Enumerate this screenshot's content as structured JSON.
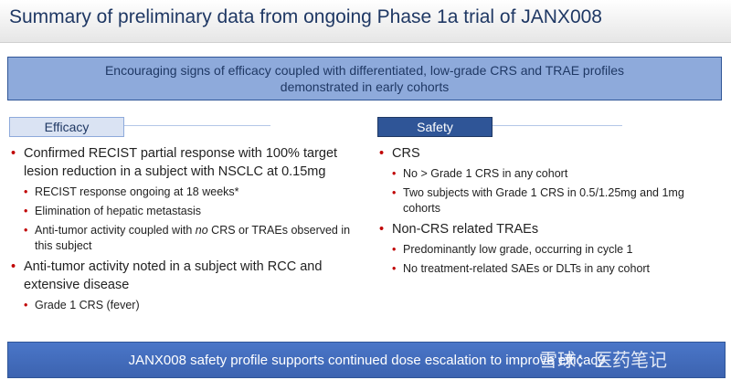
{
  "header": {
    "title": "Summary of preliminary data from ongoing Phase 1a trial of JANX008"
  },
  "banner": "Encouraging signs of efficacy coupled with differentiated, low-grade CRS and TRAE profiles demonstrated in early cohorts",
  "efficacy": {
    "heading": "Efficacy",
    "items": [
      {
        "text": "Confirmed RECIST partial response with 100% target lesion reduction in a subject with NSCLC at 0.15mg",
        "subitems": [
          "RECIST response ongoing at 18 weeks*",
          "Elimination of hepatic metastasis",
          {
            "before": "Anti-tumor activity coupled with",
            "emphasis": "no",
            "after": "CRS or TRAEs observed in this subject"
          }
        ]
      },
      {
        "text": "Anti-tumor activity noted in a subject with RCC and extensive disease",
        "subitems": [
          "Grade 1 CRS (fever)"
        ]
      }
    ]
  },
  "safety": {
    "heading": "Safety",
    "items": [
      {
        "text": "CRS",
        "subitems": [
          "No > Grade 1 CRS in any cohort",
          "Two subjects with Grade 1 CRS in 0.5/1.25mg and 1mg cohorts"
        ]
      },
      {
        "text": "Non-CRS related TRAEs",
        "subitems": [
          "Predominantly low grade, occurring in cycle 1",
          "No treatment-related SAEs or DLTs in any cohort"
        ]
      }
    ]
  },
  "footer": "JANX008 safety profile supports continued dose escalation to improve efficacy",
  "watermark": "雪球：医药笔记"
}
